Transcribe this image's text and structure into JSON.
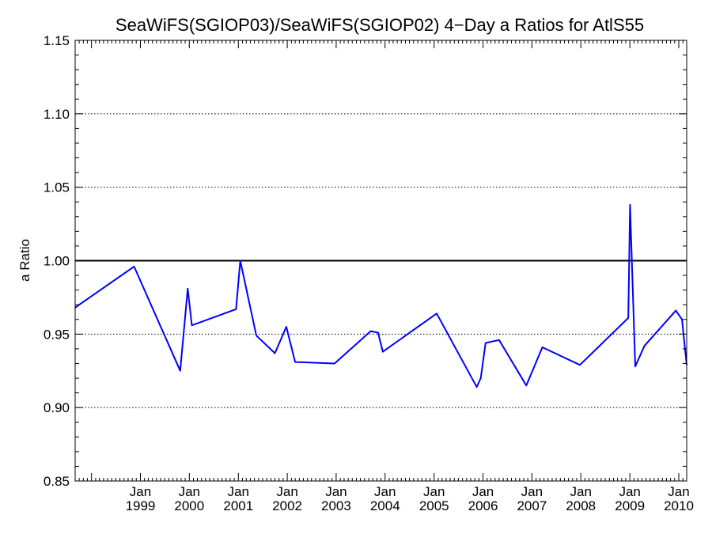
{
  "chart_data": {
    "type": "line",
    "title": "SeaWiFS(SGIOP03)/SeaWiFS(SGIOP02) 4−Day a Ratios for AtlS55",
    "xlabel": "",
    "ylabel": "a Ratio",
    "ylim": [
      0.85,
      1.15
    ],
    "yticks": [
      "0.85",
      "0.90",
      "0.95",
      "1.00",
      "1.05",
      "1.10",
      "1.15"
    ],
    "xlim": [
      "1997-09-01",
      "2010-03-01"
    ],
    "xticks": [
      {
        "date": "1999-01-01",
        "month": "Jan",
        "year": "1999"
      },
      {
        "date": "2000-01-01",
        "month": "Jan",
        "year": "2000"
      },
      {
        "date": "2001-01-01",
        "month": "Jan",
        "year": "2001"
      },
      {
        "date": "2002-01-01",
        "month": "Jan",
        "year": "2002"
      },
      {
        "date": "2003-01-01",
        "month": "Jan",
        "year": "2003"
      },
      {
        "date": "2004-01-01",
        "month": "Jan",
        "year": "2004"
      },
      {
        "date": "2005-01-01",
        "month": "Jan",
        "year": "2005"
      },
      {
        "date": "2006-01-01",
        "month": "Jan",
        "year": "2006"
      },
      {
        "date": "2007-01-01",
        "month": "Jan",
        "year": "2007"
      },
      {
        "date": "2008-01-01",
        "month": "Jan",
        "year": "2008"
      },
      {
        "date": "2009-01-01",
        "month": "Jan",
        "year": "2009"
      },
      {
        "date": "2010-01-01",
        "month": "Jan",
        "year": "2010"
      }
    ],
    "grid": "dotted horizontal at major y ticks",
    "reference_line": 1.0,
    "series": [
      {
        "color": "#0000ff",
        "points": [
          [
            "1997-09-01",
            0.968
          ],
          [
            "1997-10-01",
            0.97
          ],
          [
            "1998-11-15",
            0.996
          ],
          [
            "1999-10-25",
            0.925
          ],
          [
            "1999-12-20",
            0.981
          ],
          [
            "2000-01-20",
            0.956
          ],
          [
            "2000-12-15",
            0.967
          ],
          [
            "2001-01-15",
            1.0
          ],
          [
            "2001-05-15",
            0.949
          ],
          [
            "2001-10-01",
            0.937
          ],
          [
            "2001-12-25",
            0.955
          ],
          [
            "2002-03-01",
            0.931
          ],
          [
            "2002-12-20",
            0.93
          ],
          [
            "2003-09-15",
            0.952
          ],
          [
            "2003-11-10",
            0.951
          ],
          [
            "2003-12-15",
            0.938
          ],
          [
            "2005-01-20",
            0.964
          ],
          [
            "2005-11-15",
            0.914
          ],
          [
            "2005-12-15",
            0.92
          ],
          [
            "2006-01-20",
            0.944
          ],
          [
            "2006-05-01",
            0.946
          ],
          [
            "2006-11-20",
            0.915
          ],
          [
            "2007-03-20",
            0.941
          ],
          [
            "2007-12-25",
            0.929
          ],
          [
            "2008-12-20",
            0.961
          ],
          [
            "2009-01-02",
            1.038
          ],
          [
            "2009-02-10",
            0.928
          ],
          [
            "2009-04-20",
            0.942
          ],
          [
            "2009-12-10",
            0.966
          ],
          [
            "2010-01-25",
            0.96
          ],
          [
            "2010-03-01",
            0.929
          ]
        ]
      }
    ]
  }
}
